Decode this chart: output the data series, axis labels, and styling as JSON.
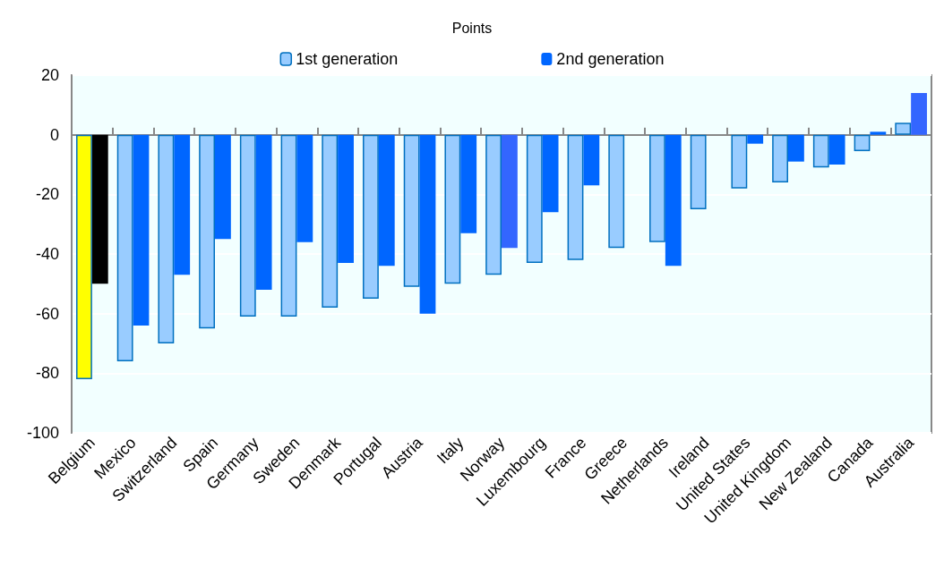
{
  "chart_data": {
    "type": "bar",
    "ylabel": "Points",
    "categories": [
      "Belgium",
      "Mexico",
      "Switzerland",
      "Spain",
      "Germany",
      "Sweden",
      "Denmark",
      "Portugal",
      "Austria",
      "Italy",
      "Norway",
      "Luxembourg",
      "France",
      "Greece",
      "Netherlands",
      "Ireland",
      "United States",
      "United Kingdom",
      "New Zealand",
      "Canada",
      "Australia"
    ],
    "series": [
      {
        "name": "1st generation",
        "color": "#99ccff",
        "colors": [
          "#ffff00",
          "#99ccff",
          "#99ccff",
          "#99ccff",
          "#99ccff",
          "#99ccff",
          "#99ccff",
          "#99ccff",
          "#99ccff",
          "#99ccff",
          "#99ccff",
          "#99ccff",
          "#99ccff",
          "#99ccff",
          "#99ccff",
          "#99ccff",
          "#99ccff",
          "#99ccff",
          "#99ccff",
          "#99ccff",
          "#99ccff"
        ],
        "values": [
          -82,
          -76,
          -70,
          -65,
          -61,
          -61,
          -58,
          -55,
          -51,
          -50,
          -47,
          -43,
          -42,
          -38,
          -36,
          -25,
          -18,
          -16,
          -11,
          -5.5,
          4
        ]
      },
      {
        "name": "2nd generation",
        "color": "#0066ff",
        "colors": [
          "#000000",
          "#0066ff",
          "#0066ff",
          "#0066ff",
          "#0066ff",
          "#0066ff",
          "#0066ff",
          "#0066ff",
          "#0066ff",
          "#0066ff",
          "#3366ff",
          "#0066ff",
          "#0066ff",
          "#0066ff",
          "#0066ff",
          "#0066ff",
          "#0066ff",
          "#0066ff",
          "#0066ff",
          "#0066ff",
          "#3366ff"
        ],
        "values": [
          -50,
          -64,
          -47,
          -35,
          -52,
          -36,
          -43,
          -44,
          -60,
          -33,
          -38,
          -26,
          -17,
          null,
          -44,
          null,
          -3,
          -9,
          -10,
          1,
          14
        ]
      }
    ],
    "ylim": [
      -100,
      20
    ],
    "yticks": [
      -100,
      -80,
      -60,
      -40,
      -20,
      0,
      20
    ],
    "grid": "y",
    "legend": "top"
  }
}
